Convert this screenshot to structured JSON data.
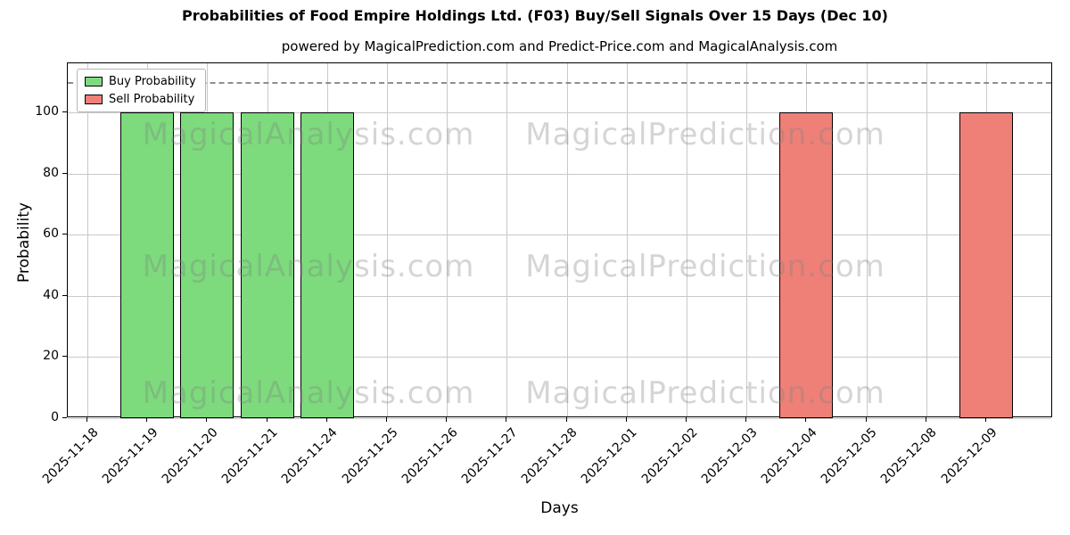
{
  "title": "Probabilities of Food Empire Holdings Ltd. (F03) Buy/Sell Signals Over 15 Days (Dec 10)",
  "subtitle": "powered by MagicalPrediction.com and Predict-Price.com and MagicalAnalysis.com",
  "legend": {
    "buy_label": "Buy Probability",
    "sell_label": "Sell Probability"
  },
  "watermarks": [
    "MagicalAnalysis.com",
    "MagicalPrediction.com"
  ],
  "colors": {
    "buy": "#7ddb7d",
    "sell": "#ef8078",
    "bar_edge": "#000000",
    "grid": "#c9c9c9",
    "dashed_line": "#8f8f8f"
  },
  "chart_data": {
    "type": "bar",
    "title": "Probabilities of Food Empire Holdings Ltd. (F03) Buy/Sell Signals Over 15 Days (Dec 10)",
    "xlabel": "Days",
    "ylabel": "Probability",
    "categories": [
      "2025-11-18",
      "2025-11-19",
      "2025-11-20",
      "2025-11-21",
      "2025-11-24",
      "2025-11-25",
      "2025-11-26",
      "2025-11-27",
      "2025-11-28",
      "2025-12-01",
      "2025-12-02",
      "2025-12-03",
      "2025-12-04",
      "2025-12-05",
      "2025-12-08",
      "2025-12-09"
    ],
    "series": [
      {
        "name": "Buy Probability",
        "color": "#7ddb7d",
        "values": [
          0,
          100,
          100,
          100,
          100,
          0,
          0,
          0,
          0,
          0,
          0,
          0,
          0,
          0,
          0,
          0
        ]
      },
      {
        "name": "Sell Probability",
        "color": "#ef8078",
        "values": [
          0,
          0,
          0,
          0,
          0,
          0,
          0,
          0,
          0,
          0,
          0,
          0,
          100,
          0,
          0,
          100
        ]
      }
    ],
    "yticks": [
      0,
      20,
      40,
      60,
      80,
      100
    ],
    "ylim": [
      0,
      116
    ],
    "dashed_line_y": 110,
    "grid": true,
    "legend_position": "upper left"
  }
}
